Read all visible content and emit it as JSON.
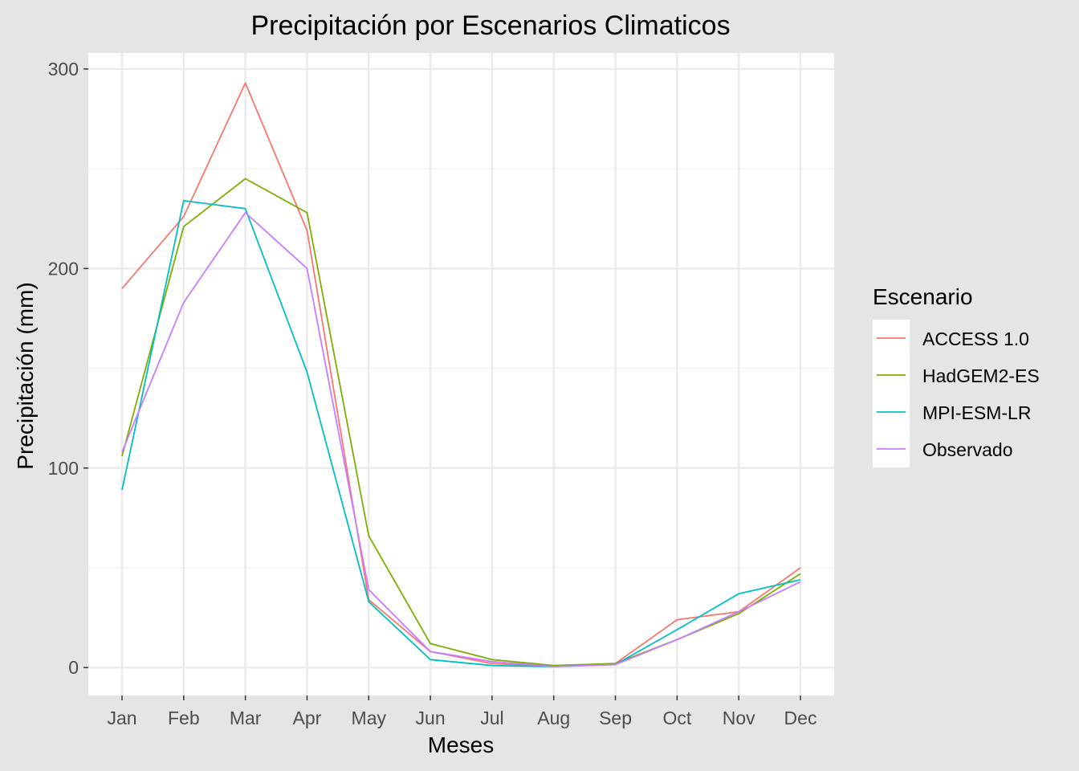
{
  "chart_data": {
    "type": "line",
    "title": "Precipitación por Escenarios Climaticos",
    "xlabel": "Meses",
    "ylabel": "Precipitación (mm)",
    "categories": [
      "Jan",
      "Feb",
      "Mar",
      "Apr",
      "May",
      "Jun",
      "Jul",
      "Aug",
      "Sep",
      "Oct",
      "Nov",
      "Dec"
    ],
    "ylim": [
      -14,
      308
    ],
    "yticks": [
      0,
      100,
      200,
      300
    ],
    "grid": true,
    "legend": {
      "title": "Escenario",
      "position": "right"
    },
    "series": [
      {
        "name": "ACCESS 1.0",
        "color": "#F8766D",
        "values": [
          190,
          226,
          293,
          219,
          34,
          8,
          2,
          0.5,
          2,
          24,
          28,
          50
        ]
      },
      {
        "name": "HadGEM2-ES",
        "color": "#7CAE00",
        "values": [
          106,
          221,
          245,
          228,
          66,
          12,
          4,
          1,
          2,
          14,
          27,
          47
        ]
      },
      {
        "name": "MPI-ESM-LR",
        "color": "#00BFC4",
        "values": [
          89,
          234,
          230,
          148,
          33,
          4,
          1,
          0.5,
          1.5,
          19,
          37,
          44
        ]
      },
      {
        "name": "Observado",
        "color": "#C77CFF",
        "values": [
          108,
          183,
          228,
          200,
          39,
          8,
          3,
          0.5,
          1.5,
          14,
          28,
          43
        ]
      }
    ]
  }
}
